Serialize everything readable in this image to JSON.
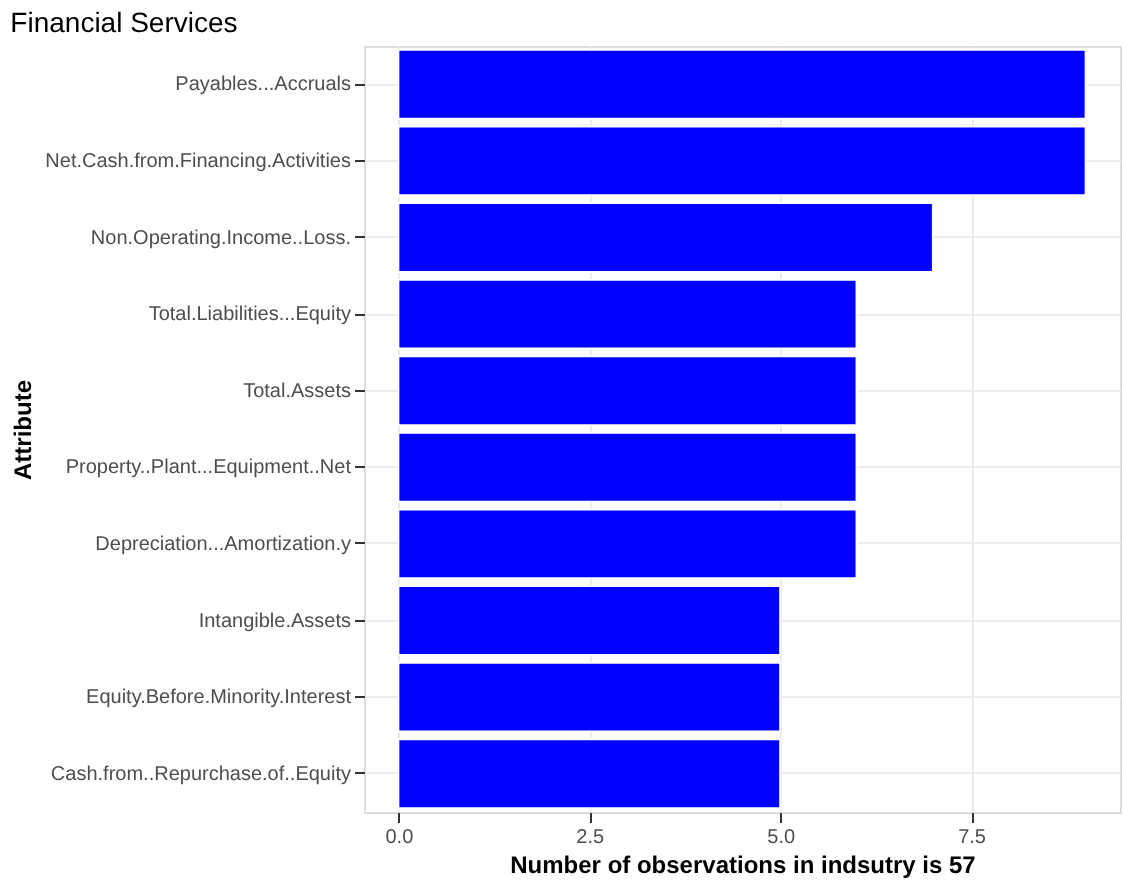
{
  "chart_data": {
    "type": "bar",
    "orientation": "horizontal",
    "title": "Financial Services",
    "xlabel": "Number of observations in indsutry is 57",
    "ylabel": "Attribute",
    "categories": [
      "Payables...Accruals",
      "Net.Cash.from.Financing.Activities",
      "Non.Operating.Income..Loss.",
      "Total.Liabilities...Equity",
      "Total.Assets",
      "Property..Plant...Equipment..Net",
      "Depreciation...Amortization.y",
      "Intangible.Assets",
      "Equity.Before.Minority.Interest",
      "Cash.from..Repurchase.of..Equity"
    ],
    "values": [
      9,
      9,
      7,
      6,
      6,
      6,
      6,
      5,
      5,
      5
    ],
    "color": "#0000ff",
    "xlim": [
      -0.45,
      9.45
    ],
    "xticks": [
      {
        "value": 0,
        "label": "0.0"
      },
      {
        "value": 2.5,
        "label": "2.5"
      },
      {
        "value": 5,
        "label": "5.0"
      },
      {
        "value": 7.5,
        "label": "7.5"
      }
    ],
    "grid": true
  }
}
